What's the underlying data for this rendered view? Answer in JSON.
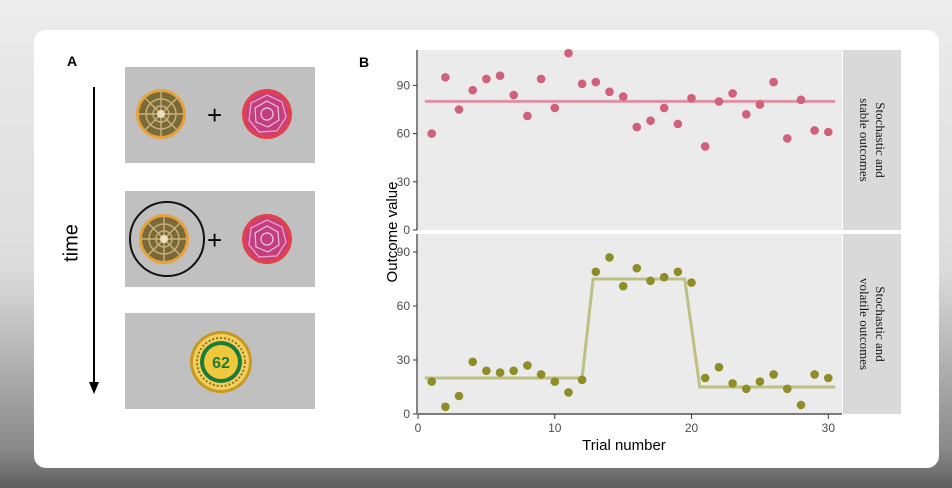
{
  "panel_a": {
    "label": "A",
    "time_label": "time",
    "coin_value": "62"
  },
  "panel_b": {
    "label": "B"
  },
  "colors": {
    "stable_points": "#d1607a",
    "stable_line": "#dc93a6",
    "volatile_points": "#8f8d28",
    "volatile_line": "#bcc083",
    "panel_bg": "#ebebeb",
    "strip_bg": "#d9d9d9",
    "stim_box": "#c0c0c0"
  },
  "chart_data": {
    "type": "scatter",
    "xlabel": "Trial number",
    "ylabel": "Outcome value",
    "xlim": [
      0,
      31
    ],
    "x_ticks": [
      0,
      10,
      20,
      30
    ],
    "facets": [
      {
        "strip_lines": [
          "Stochastic and",
          "stable outcomes"
        ],
        "ylim": [
          0,
          112
        ],
        "y_ticks": [
          0,
          30,
          60,
          90
        ],
        "points": [
          [
            1,
            60
          ],
          [
            2,
            95
          ],
          [
            3,
            75
          ],
          [
            4,
            87
          ],
          [
            5,
            94
          ],
          [
            6,
            96
          ],
          [
            7,
            84
          ],
          [
            8,
            71
          ],
          [
            9,
            94
          ],
          [
            10,
            76
          ],
          [
            11,
            110
          ],
          [
            12,
            91
          ],
          [
            13,
            92
          ],
          [
            14,
            86
          ],
          [
            15,
            83
          ],
          [
            16,
            64
          ],
          [
            17,
            68
          ],
          [
            18,
            76
          ],
          [
            19,
            66
          ],
          [
            20,
            82
          ],
          [
            21,
            52
          ],
          [
            22,
            80
          ],
          [
            23,
            85
          ],
          [
            24,
            72
          ],
          [
            25,
            78
          ],
          [
            26,
            92
          ],
          [
            27,
            57
          ],
          [
            28,
            81
          ],
          [
            29,
            62
          ],
          [
            30,
            61
          ]
        ],
        "mean_line": [
          [
            0.5,
            80
          ],
          [
            30.5,
            80
          ]
        ]
      },
      {
        "strip_lines": [
          "Stochastic and",
          "volatile outcomes"
        ],
        "ylim": [
          0,
          100
        ],
        "y_ticks": [
          0,
          30,
          60,
          90
        ],
        "points": [
          [
            1,
            18
          ],
          [
            2,
            4
          ],
          [
            3,
            10
          ],
          [
            4,
            29
          ],
          [
            5,
            24
          ],
          [
            6,
            23
          ],
          [
            7,
            24
          ],
          [
            8,
            27
          ],
          [
            9,
            22
          ],
          [
            10,
            18
          ],
          [
            11,
            12
          ],
          [
            12,
            19
          ],
          [
            13,
            79
          ],
          [
            14,
            87
          ],
          [
            15,
            71
          ],
          [
            16,
            81
          ],
          [
            17,
            74
          ],
          [
            18,
            76
          ],
          [
            19,
            79
          ],
          [
            20,
            73
          ],
          [
            21,
            20
          ],
          [
            22,
            26
          ],
          [
            23,
            17
          ],
          [
            24,
            14
          ],
          [
            25,
            18
          ],
          [
            26,
            22
          ],
          [
            27,
            14
          ],
          [
            28,
            5
          ],
          [
            29,
            22
          ],
          [
            30,
            20
          ]
        ],
        "mean_line": [
          [
            0.5,
            20
          ],
          [
            12,
            20
          ],
          [
            12.8,
            75
          ],
          [
            19.5,
            75
          ],
          [
            20.6,
            15
          ],
          [
            30.5,
            15
          ]
        ]
      }
    ]
  }
}
